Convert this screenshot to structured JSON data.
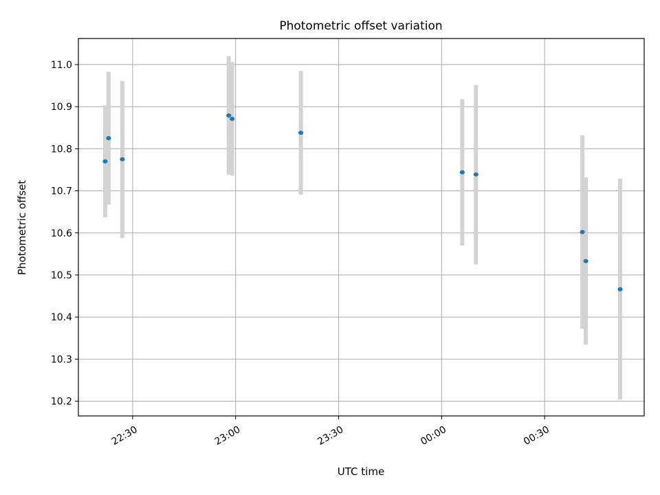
{
  "chart_data": {
    "type": "scatter",
    "title": "Photometric offset variation",
    "xlabel": "UTC time",
    "ylabel": "Photometric offset",
    "grid": true,
    "x_tick_labels": [
      "22:30",
      "23:00",
      "23:30",
      "00:00",
      "00:30"
    ],
    "x_tick_minutes": [
      0,
      30,
      60,
      90,
      120
    ],
    "xlim_minutes": [
      -15.8,
      149.0
    ],
    "x_reference": "22:30",
    "y_ticks": [
      10.2,
      10.3,
      10.4,
      10.5,
      10.6,
      10.7,
      10.8,
      10.9,
      11.0
    ],
    "y_tick_labels": [
      "10.2",
      "10.3",
      "10.4",
      "10.5",
      "10.6",
      "10.7",
      "10.8",
      "10.9",
      "11.0"
    ],
    "ylim": [
      10.165,
      11.062
    ],
    "marker_color": "#1f77b4",
    "errorbar_color": "#d3d3d3",
    "points": [
      {
        "time": "22:22",
        "y": 10.77,
        "low": 10.637,
        "high": 10.903
      },
      {
        "time": "22:23",
        "y": 10.825,
        "low": 10.667,
        "high": 10.983
      },
      {
        "time": "22:27",
        "y": 10.775,
        "low": 10.588,
        "high": 10.961
      },
      {
        "time": "22:58",
        "y": 10.879,
        "low": 10.738,
        "high": 11.02
      },
      {
        "time": "22:59",
        "y": 10.871,
        "low": 10.736,
        "high": 11.006
      },
      {
        "time": "23:19",
        "y": 10.838,
        "low": 10.691,
        "high": 10.985
      },
      {
        "time": "00:06",
        "y": 10.744,
        "low": 10.57,
        "high": 10.918
      },
      {
        "time": "00:10",
        "y": 10.739,
        "low": 10.525,
        "high": 10.951
      },
      {
        "time": "00:41",
        "y": 10.602,
        "low": 10.372,
        "high": 10.832
      },
      {
        "time": "00:42",
        "y": 10.533,
        "low": 10.335,
        "high": 10.732
      },
      {
        "time": "00:52",
        "y": 10.466,
        "low": 10.204,
        "high": 10.729
      }
    ]
  }
}
